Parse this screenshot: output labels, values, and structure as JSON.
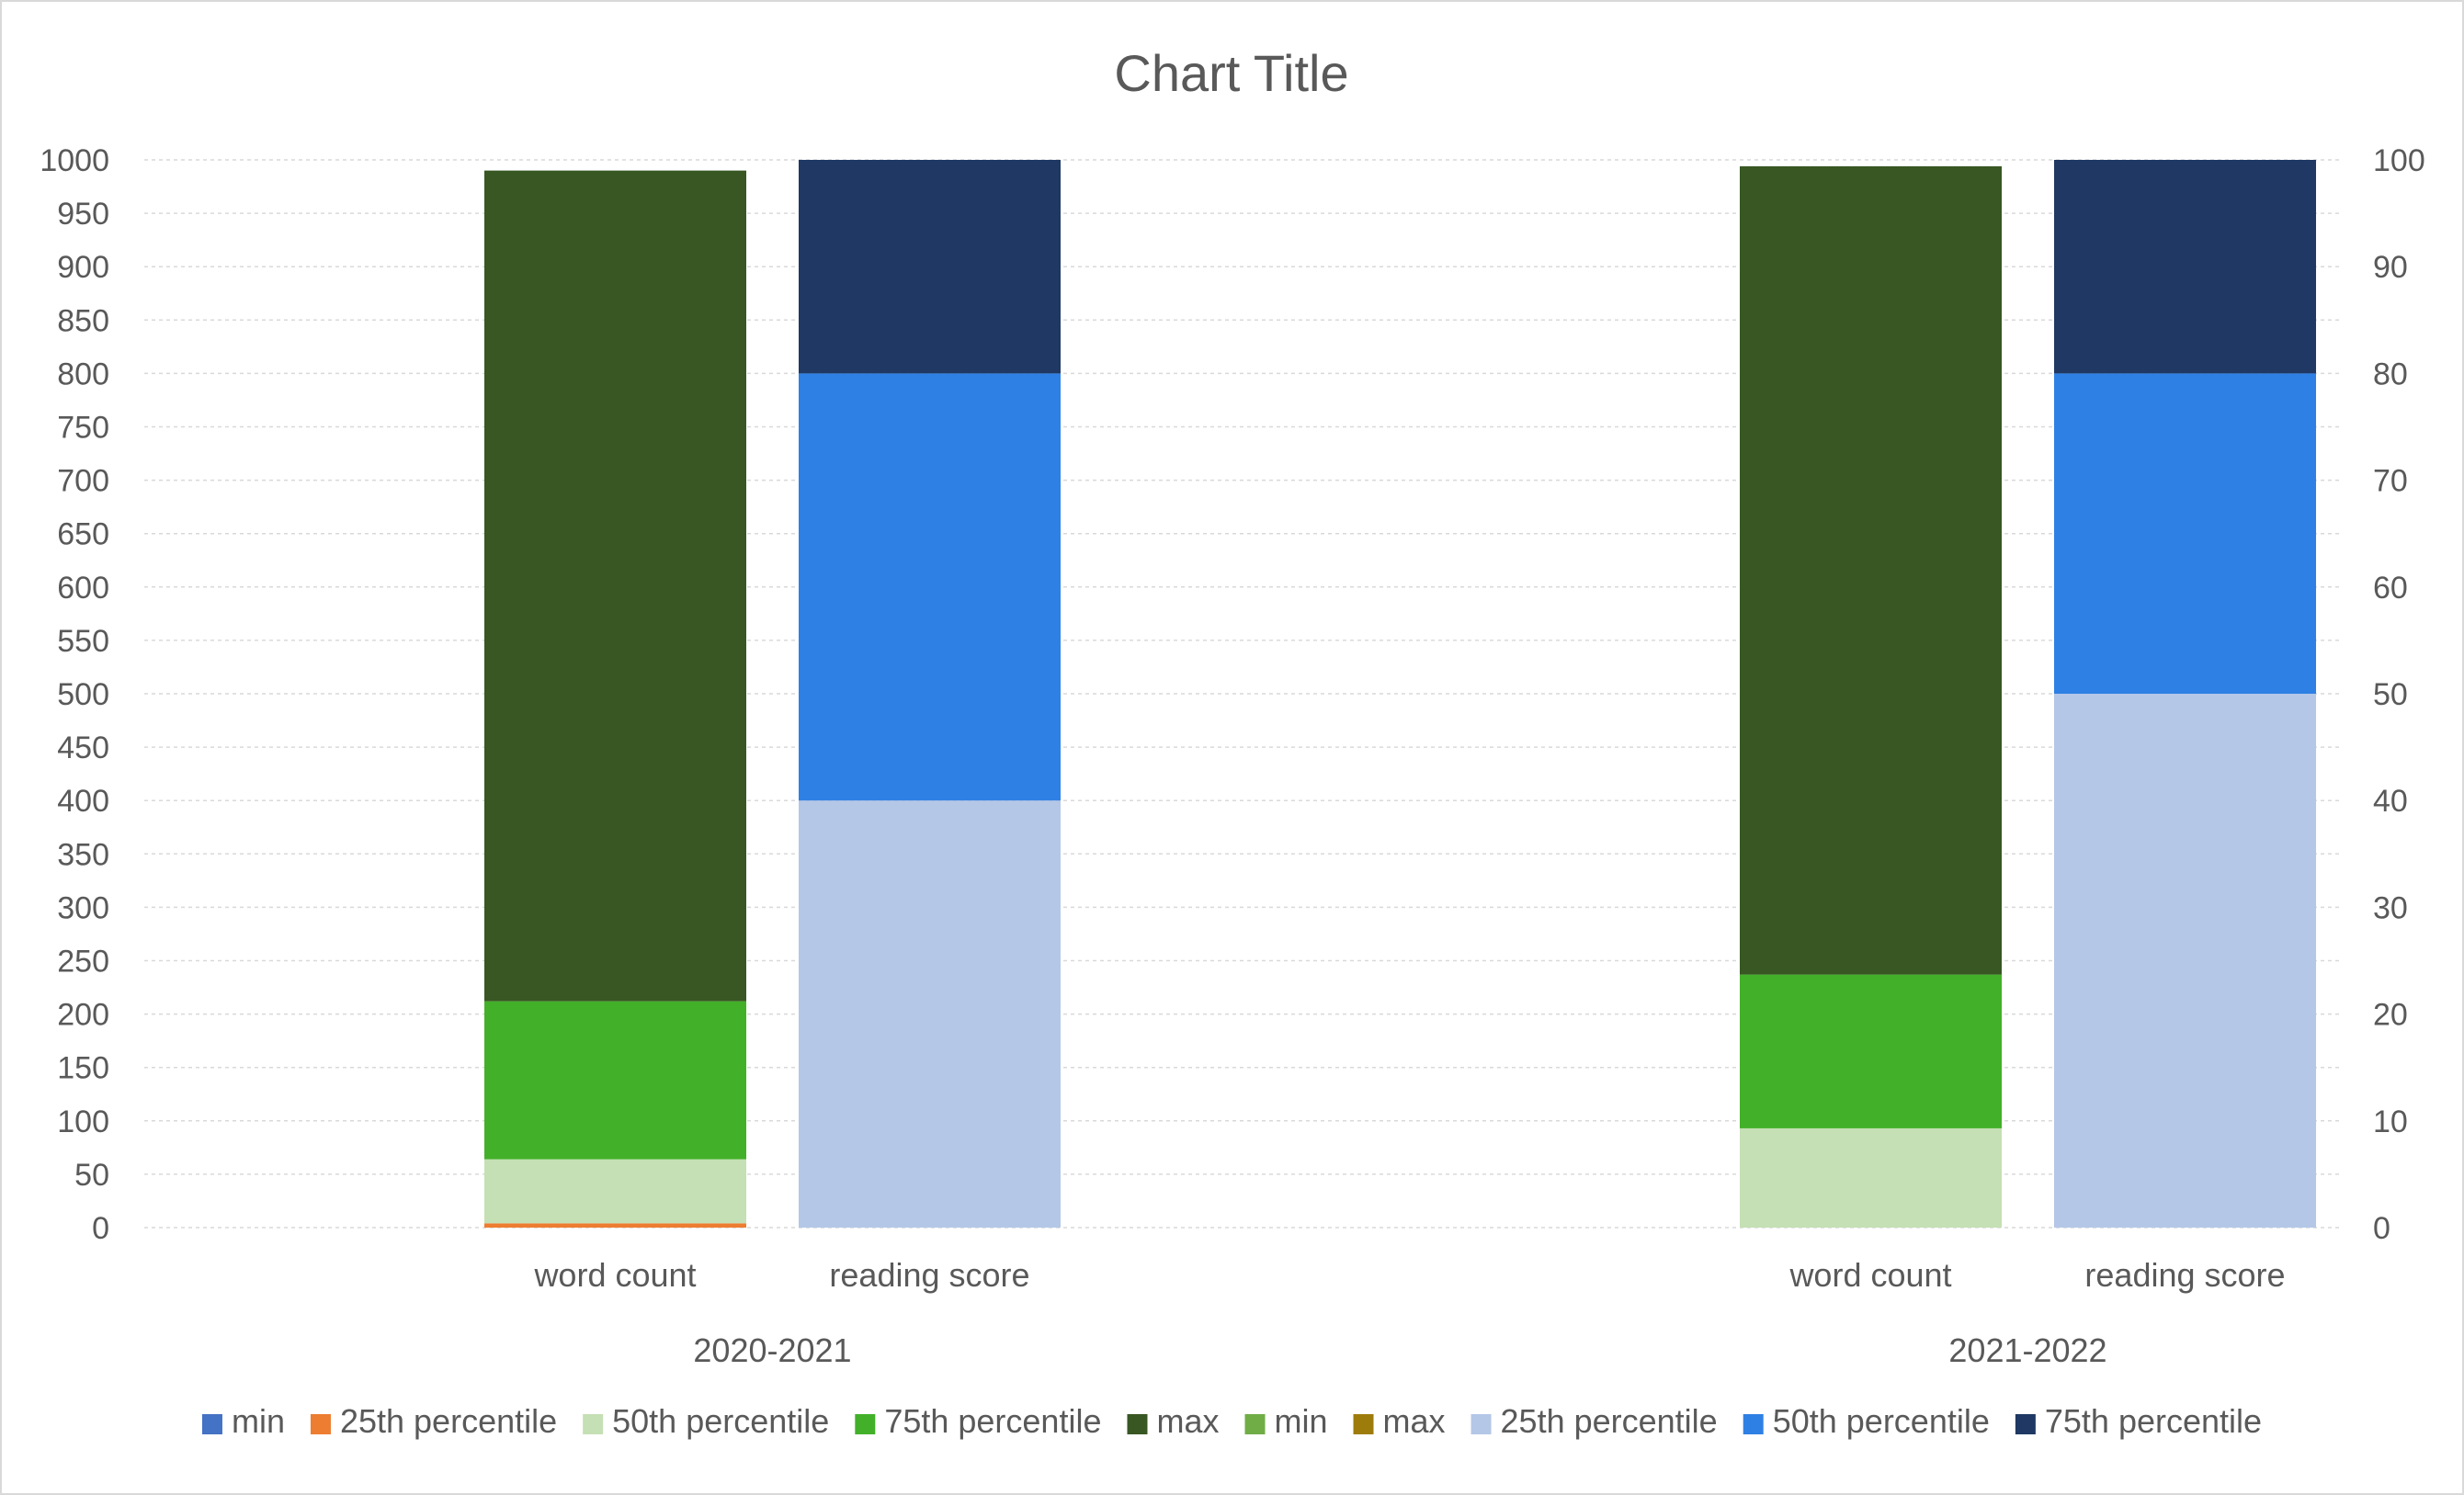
{
  "chart_data": {
    "type": "bar",
    "subtype": "stacked-grouped-dual-axis",
    "title": "Chart Title",
    "groups": [
      "2020-2021",
      "2021-2022"
    ],
    "group_members": [
      "word count",
      "reading score"
    ],
    "y_left": {
      "lim": [
        0,
        1000
      ],
      "step": 50
    },
    "y_right": {
      "lim": [
        0,
        100
      ],
      "step": 10
    },
    "gridlines": true,
    "legend_position": "bottom",
    "legend": [
      {
        "name": "min",
        "color": "#4472C4"
      },
      {
        "name": "25th percentile",
        "color": "#ED7D31"
      },
      {
        "name": "50th percentile",
        "color": "#C5E0B4"
      },
      {
        "name": "75th percentile",
        "color": "#43B02A"
      },
      {
        "name": "max",
        "color": "#385723"
      },
      {
        "name": "min",
        "color": "#70AD47"
      },
      {
        "name": "max",
        "color": "#9E7C0C"
      },
      {
        "name": "25th percentile",
        "color": "#B4C7E7"
      },
      {
        "name": "50th percentile",
        "color": "#2F80E4"
      },
      {
        "name": "75th percentile",
        "color": "#1F3864"
      }
    ],
    "word_count_series": [
      {
        "name": "min",
        "color": "#4472C4",
        "values": [
          0,
          0
        ]
      },
      {
        "name": "25th percentile",
        "color": "#ED7D31",
        "values": [
          4,
          0
        ]
      },
      {
        "name": "50th percentile",
        "color": "#C5E0B4",
        "values": [
          60,
          93
        ]
      },
      {
        "name": "75th percentile",
        "color": "#43B02A",
        "values": [
          148,
          144
        ]
      },
      {
        "name": "max",
        "color": "#385723",
        "values": [
          778,
          757
        ]
      }
    ],
    "reading_score_series": [
      {
        "name": "min",
        "color": "#70AD47",
        "values": [
          0,
          0
        ]
      },
      {
        "name": "25th percentile",
        "color": "#B4C7E7",
        "values": [
          40,
          50
        ]
      },
      {
        "name": "50th percentile",
        "color": "#2F80E4",
        "values": [
          40,
          30
        ]
      },
      {
        "name": "75th percentile",
        "color": "#1F3864",
        "values": [
          20,
          20
        ]
      },
      {
        "name": "max",
        "color": "#9E7C0C",
        "values": [
          0,
          0
        ]
      }
    ],
    "colors": {
      "grid": "#d9d9d9",
      "text": "#595959"
    }
  }
}
